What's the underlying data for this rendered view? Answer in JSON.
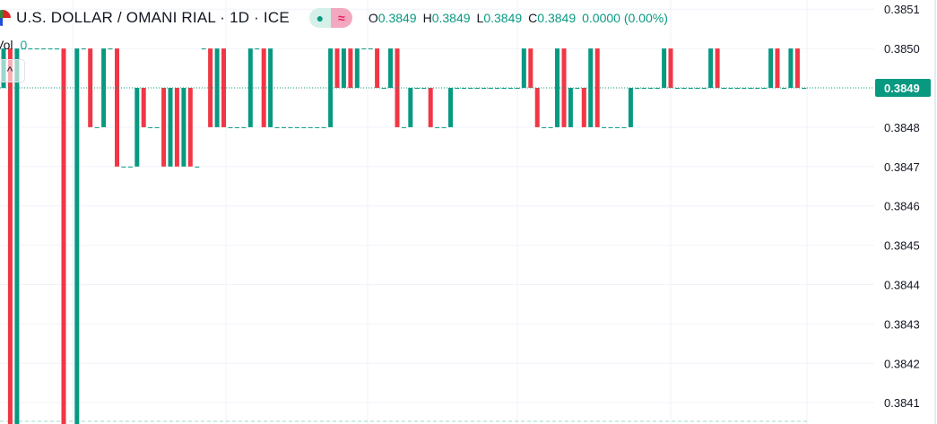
{
  "header": {
    "title": "U.S. DOLLAR / OMANI RIAL · 1D · ICE",
    "toggle_dot": "●",
    "toggle_wave": "≈",
    "ohlc": {
      "o_label": "O",
      "o": "0.3849",
      "h_label": "H",
      "h": "0.3849",
      "l_label": "L",
      "l": "0.3849",
      "c_label": "C",
      "c": "0.3849",
      "change": "0.0000 (0.00%)"
    }
  },
  "volume": {
    "label": "Vol",
    "value": "0"
  },
  "collapse_icon": "^",
  "colors": {
    "up": "#089981",
    "down": "#F23645",
    "grid": "#f0f3fa",
    "last_price": "#089981"
  },
  "chart_data": {
    "type": "candlestick",
    "symbol": "U.S. DOLLAR / OMANI RIAL",
    "interval": "1D",
    "ylim": [
      0.38405,
      0.38512
    ],
    "yticks": [
      "0.3851",
      "0.3850",
      "0.3848",
      "0.3847",
      "0.3846",
      "0.3845",
      "0.3844",
      "0.3843",
      "0.3842",
      "0.3841"
    ],
    "last_price": "0.3849",
    "grid": true,
    "candles": [
      [
        0.3849,
        0.385
      ],
      [
        0.385,
        0.384
      ],
      [
        0.384,
        0.385
      ],
      [
        0.385,
        0.385
      ],
      [
        0.385,
        0.385
      ],
      [
        0.385,
        0.385
      ],
      [
        0.385,
        0.385
      ],
      [
        0.385,
        0.385
      ],
      [
        0.385,
        0.385
      ],
      [
        0.385,
        0.384
      ],
      [
        0.384,
        0.384
      ],
      [
        0.384,
        0.385
      ],
      [
        0.385,
        0.385
      ],
      [
        0.385,
        0.3848
      ],
      [
        0.3848,
        0.3848
      ],
      [
        0.3848,
        0.385
      ],
      [
        0.385,
        0.385
      ],
      [
        0.385,
        0.3847
      ],
      [
        0.3847,
        0.3847
      ],
      [
        0.3847,
        0.3847
      ],
      [
        0.3847,
        0.3849
      ],
      [
        0.3849,
        0.3848
      ],
      [
        0.3848,
        0.3848
      ],
      [
        0.3848,
        0.3848
      ],
      [
        0.3849,
        0.3847
      ],
      [
        0.3847,
        0.3849
      ],
      [
        0.3849,
        0.3847
      ],
      [
        0.3847,
        0.3849
      ],
      [
        0.3849,
        0.3847
      ],
      [
        0.3847,
        0.3847
      ],
      [
        0.385,
        0.385
      ],
      [
        0.385,
        0.3848
      ],
      [
        0.3848,
        0.385
      ],
      [
        0.385,
        0.3848
      ],
      [
        0.3848,
        0.3848
      ],
      [
        0.3848,
        0.3848
      ],
      [
        0.3848,
        0.3848
      ],
      [
        0.3848,
        0.385
      ],
      [
        0.385,
        0.385
      ],
      [
        0.385,
        0.3848
      ],
      [
        0.3848,
        0.385
      ],
      [
        0.3848,
        0.3848
      ],
      [
        0.3848,
        0.3848
      ],
      [
        0.3848,
        0.3848
      ],
      [
        0.3848,
        0.3848
      ],
      [
        0.3848,
        0.3848
      ],
      [
        0.3848,
        0.3848
      ],
      [
        0.3848,
        0.3848
      ],
      [
        0.3848,
        0.3848
      ],
      [
        0.3848,
        0.385
      ],
      [
        0.385,
        0.3849
      ],
      [
        0.3849,
        0.385
      ],
      [
        0.385,
        0.3849
      ],
      [
        0.3849,
        0.385
      ],
      [
        0.385,
        0.385
      ],
      [
        0.385,
        0.385
      ],
      [
        0.385,
        0.3849
      ],
      [
        0.3849,
        0.3849
      ],
      [
        0.3849,
        0.385
      ],
      [
        0.385,
        0.3848
      ],
      [
        0.3848,
        0.3848
      ],
      [
        0.3848,
        0.3849
      ],
      [
        0.3849,
        0.3849
      ],
      [
        0.3849,
        0.3849
      ],
      [
        0.3849,
        0.3848
      ],
      [
        0.3848,
        0.3848
      ],
      [
        0.3848,
        0.3848
      ],
      [
        0.3848,
        0.3849
      ],
      [
        0.3849,
        0.3849
      ],
      [
        0.3849,
        0.3849
      ],
      [
        0.3849,
        0.3849
      ],
      [
        0.3849,
        0.3849
      ],
      [
        0.3849,
        0.3849
      ],
      [
        0.3849,
        0.3849
      ],
      [
        0.3849,
        0.3849
      ],
      [
        0.3849,
        0.3849
      ],
      [
        0.3849,
        0.3849
      ],
      [
        0.3849,
        0.3849
      ],
      [
        0.3849,
        0.385
      ],
      [
        0.385,
        0.3849
      ],
      [
        0.3849,
        0.3848
      ],
      [
        0.3848,
        0.3848
      ],
      [
        0.3848,
        0.3848
      ],
      [
        0.3848,
        0.385
      ],
      [
        0.385,
        0.3848
      ],
      [
        0.3848,
        0.3849
      ],
      [
        0.3849,
        0.3849
      ],
      [
        0.3849,
        0.3848
      ],
      [
        0.3848,
        0.385
      ],
      [
        0.385,
        0.3848
      ],
      [
        0.3848,
        0.3848
      ],
      [
        0.3848,
        0.3848
      ],
      [
        0.3848,
        0.3848
      ],
      [
        0.3848,
        0.3848
      ],
      [
        0.3848,
        0.3849
      ],
      [
        0.3849,
        0.3849
      ],
      [
        0.3849,
        0.3849
      ],
      [
        0.3849,
        0.3849
      ],
      [
        0.3849,
        0.3849
      ],
      [
        0.3849,
        0.385
      ],
      [
        0.385,
        0.3849
      ],
      [
        0.3849,
        0.3849
      ],
      [
        0.3849,
        0.3849
      ],
      [
        0.3849,
        0.3849
      ],
      [
        0.3849,
        0.3849
      ],
      [
        0.3849,
        0.3849
      ],
      [
        0.3849,
        0.385
      ],
      [
        0.385,
        0.3849
      ],
      [
        0.3849,
        0.3849
      ],
      [
        0.3849,
        0.3849
      ],
      [
        0.3849,
        0.3849
      ],
      [
        0.3849,
        0.3849
      ],
      [
        0.3849,
        0.3849
      ],
      [
        0.3849,
        0.3849
      ],
      [
        0.3849,
        0.3849
      ],
      [
        0.3849,
        0.385
      ],
      [
        0.385,
        0.3849
      ],
      [
        0.3849,
        0.3849
      ],
      [
        0.3849,
        0.385
      ],
      [
        0.385,
        0.3849
      ],
      [
        0.3849,
        0.3849
      ]
    ]
  }
}
